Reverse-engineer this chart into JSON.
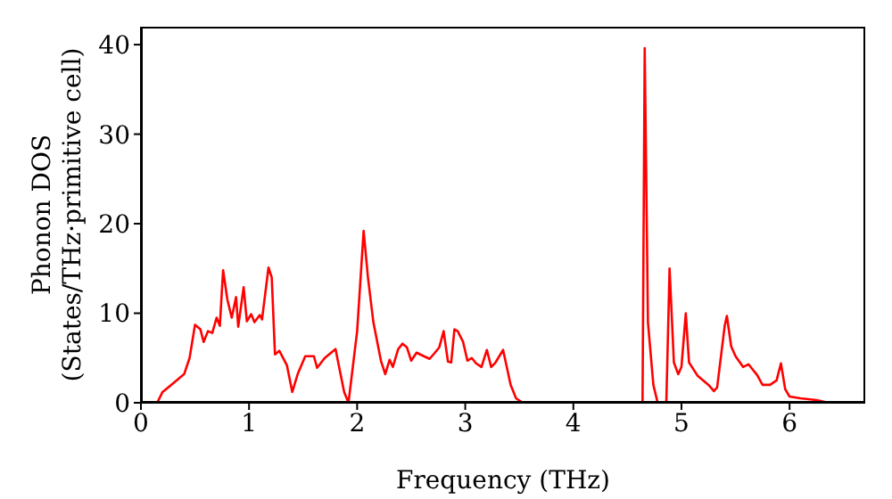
{
  "chart_data": {
    "type": "line",
    "xlabel": "Frequency (THz)",
    "ylabel": "Phonon DOS\n(States/THz·primitive cell)",
    "x": [
      0,
      0.15,
      0.2,
      0.3,
      0.4,
      0.45,
      0.5,
      0.55,
      0.58,
      0.62,
      0.66,
      0.7,
      0.73,
      0.76,
      0.8,
      0.84,
      0.88,
      0.9,
      0.95,
      0.98,
      1.02,
      1.05,
      1.1,
      1.12,
      1.18,
      1.21,
      1.24,
      1.28,
      1.35,
      1.4,
      1.45,
      1.52,
      1.6,
      1.63,
      1.7,
      1.8,
      1.88,
      1.92,
      2.0,
      2.06,
      2.1,
      2.15,
      2.22,
      2.26,
      2.3,
      2.33,
      2.38,
      2.42,
      2.46,
      2.5,
      2.55,
      2.6,
      2.67,
      2.72,
      2.76,
      2.8,
      2.84,
      2.87,
      2.9,
      2.93,
      2.98,
      3.02,
      3.06,
      3.1,
      3.15,
      3.2,
      3.24,
      3.28,
      3.35,
      3.42,
      3.47,
      3.52,
      3.6,
      4.6,
      4.64,
      4.66,
      4.69,
      4.74,
      4.78,
      4.86,
      4.89,
      4.93,
      4.97,
      5.0,
      5.04,
      5.07,
      5.15,
      5.25,
      5.3,
      5.33,
      5.4,
      5.42,
      5.46,
      5.5,
      5.57,
      5.62,
      5.7,
      5.75,
      5.82,
      5.88,
      5.92,
      5.96,
      6.0,
      6.1,
      6.25,
      6.36
    ],
    "series": [
      {
        "color": "#ff0000",
        "values": [
          0,
          0,
          1.2,
          2.2,
          3.2,
          5,
          8.7,
          8.2,
          6.8,
          8,
          7.8,
          9.5,
          8.6,
          14.8,
          11.5,
          9.5,
          11.8,
          8.5,
          12.9,
          9.1,
          9.9,
          9,
          9.8,
          9.3,
          15.1,
          14,
          5.4,
          5.8,
          4.2,
          1.2,
          3.2,
          5.2,
          5.2,
          3.9,
          5,
          6,
          1.2,
          0,
          8,
          19.2,
          14,
          9,
          4.7,
          3.2,
          4.8,
          4,
          6,
          6.6,
          6.2,
          4.7,
          5.6,
          5.3,
          4.9,
          5.6,
          6.2,
          8,
          4.6,
          4.5,
          8.2,
          8,
          6.8,
          4.7,
          5,
          4.4,
          4,
          5.9,
          4,
          4.5,
          5.9,
          2,
          0.5,
          0.1,
          0,
          0,
          0,
          39.6,
          9,
          2,
          0,
          0,
          15,
          4.5,
          3.2,
          4,
          10,
          4.5,
          3,
          2,
          1.3,
          1.7,
          8.6,
          9.7,
          6.3,
          5.2,
          4,
          4.3,
          3.1,
          2,
          2,
          2.5,
          4.4,
          1.5,
          0.7,
          0.5,
          0.3,
          0
        ]
      }
    ],
    "xlim": [
      0,
      6.7
    ],
    "xticks": [
      0,
      1,
      2,
      3,
      4,
      5,
      6
    ],
    "ylim": [
      0,
      42
    ],
    "yticks": [
      0,
      10,
      20,
      30,
      40
    ],
    "grid": false,
    "legend": false,
    "marker": "none",
    "line_style": "solid"
  }
}
